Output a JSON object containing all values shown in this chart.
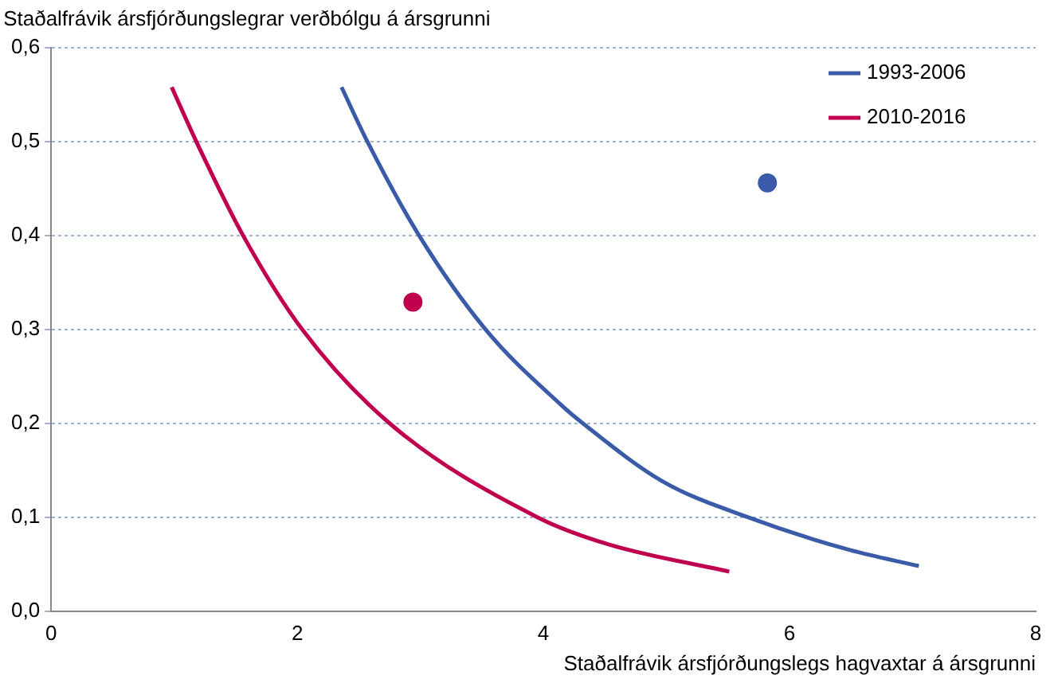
{
  "chart_data": {
    "type": "line",
    "xlabel": "Staðalfrávik ársfjórðungslegs hagvaxtar á ársgrunni",
    "ylabel": "Staðalfrávik ársfjórðungslegrar verðbólgu á ársgrunni",
    "series": [
      {
        "name": "1993-2006",
        "color": "#3a5ba8",
        "marker": "none",
        "line_style": "solid",
        "x": [
          2.36,
          2.57,
          2.99,
          3.53,
          4.14,
          4.32,
          4.97,
          5.66,
          6.49,
          7.05
        ],
        "values": [
          0.558,
          0.5,
          0.4,
          0.3,
          0.22,
          0.2,
          0.138,
          0.1,
          0.065,
          0.048
        ]
      },
      {
        "name": "2010-2016",
        "color": "#c0004e",
        "marker": "none",
        "line_style": "solid",
        "x": [
          0.98,
          1.18,
          1.56,
          2.04,
          2.75,
          3.95,
          4.53,
          5.51
        ],
        "values": [
          0.558,
          0.5,
          0.4,
          0.3,
          0.2,
          0.1,
          0.071,
          0.042
        ]
      },
      {
        "color": "#3a5ba8",
        "type": "scatter",
        "marker": "circle",
        "x": [
          5.82
        ],
        "values": [
          0.456
        ]
      },
      {
        "color": "#c0004e",
        "type": "scatter",
        "marker": "circle",
        "x": [
          2.94
        ],
        "values": [
          0.329
        ]
      }
    ],
    "xlim": [
      0,
      8
    ],
    "xticks": [
      0,
      2,
      4,
      6,
      8
    ],
    "ylim": [
      0,
      0.6
    ],
    "yticks": [
      {
        "value": 0,
        "label": "0,0"
      },
      {
        "value": 0.1,
        "label": "0,1"
      },
      {
        "value": 0.2,
        "label": "0,2"
      },
      {
        "value": 0.3,
        "label": "0,3"
      },
      {
        "value": 0.4,
        "label": "0,4"
      },
      {
        "value": 0.5,
        "label": "0,5"
      },
      {
        "value": 0.6,
        "label": "0,6"
      }
    ],
    "grid": "y",
    "legend": "top right"
  }
}
